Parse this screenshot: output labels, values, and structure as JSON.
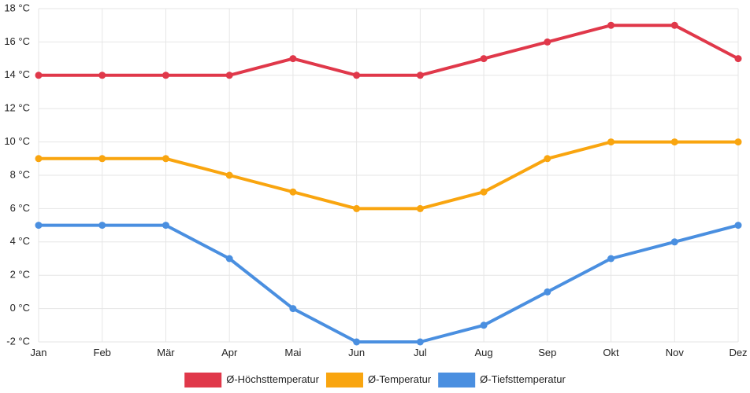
{
  "chart_data": {
    "type": "line",
    "categories": [
      "Jan",
      "Feb",
      "Mär",
      "Apr",
      "Mai",
      "Jun",
      "Jul",
      "Aug",
      "Sep",
      "Okt",
      "Nov",
      "Dez"
    ],
    "series": [
      {
        "name": "Ø-Höchsttemperatur",
        "color": "#e0384a",
        "values": [
          14,
          14,
          14,
          14,
          15,
          14,
          14,
          15,
          16,
          17,
          17,
          15
        ]
      },
      {
        "name": "Ø-Temperatur",
        "color": "#f9a50f",
        "values": [
          9,
          9,
          9,
          8,
          7,
          6,
          6,
          7,
          9,
          10,
          10,
          10
        ]
      },
      {
        "name": "Ø-Tiefsttemperatur",
        "color": "#4a8fe0",
        "values": [
          5,
          5,
          5,
          3,
          0,
          -2,
          -2,
          -1,
          1,
          3,
          4,
          5
        ]
      }
    ],
    "ylim": [
      -2,
      18
    ],
    "yticks": [
      -2,
      0,
      2,
      4,
      6,
      8,
      10,
      12,
      14,
      16,
      18
    ],
    "y_unit": "°C",
    "grid": true,
    "legend_position": "bottom-center",
    "title": "",
    "xlabel": "",
    "ylabel": ""
  }
}
